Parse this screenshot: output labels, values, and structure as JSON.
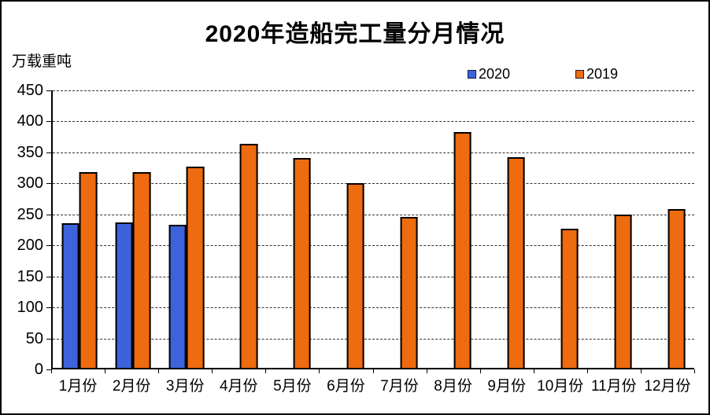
{
  "title": "2020年造船完工量分月情况",
  "y_axis_unit": "万载重吨",
  "legend": {
    "items": [
      {
        "label": "2020",
        "color": "#3d63dc"
      },
      {
        "label": "2019",
        "color": "#ee6b0f"
      }
    ]
  },
  "colors": {
    "series_2020": "#3d63dc",
    "series_2019": "#ee6b0f",
    "bar_border": "#000000",
    "axis": "#000000",
    "background": "#ffffff"
  },
  "chart_data": {
    "type": "bar",
    "title": "2020年造船完工量分月情况",
    "xlabel": "",
    "ylabel": "万载重吨",
    "categories": [
      "1月份",
      "2月份",
      "3月份",
      "4月份",
      "5月份",
      "6月份",
      "7月份",
      "8月份",
      "9月份",
      "10月份",
      "11月份",
      "12月份"
    ],
    "series": [
      {
        "name": "2020",
        "color": "#3d63dc",
        "values": [
          234,
          236,
          232,
          null,
          null,
          null,
          null,
          null,
          null,
          null,
          null,
          null
        ]
      },
      {
        "name": "2019",
        "color": "#ee6b0f",
        "values": [
          317,
          317,
          326,
          363,
          341,
          299,
          245,
          383,
          342,
          226,
          249,
          257
        ]
      }
    ],
    "ylim": [
      0,
      450
    ],
    "yticks": [
      0,
      50,
      100,
      150,
      200,
      250,
      300,
      350,
      400,
      450
    ],
    "grid": true,
    "gridline_style": "dashed",
    "legend_position": "top-right"
  }
}
